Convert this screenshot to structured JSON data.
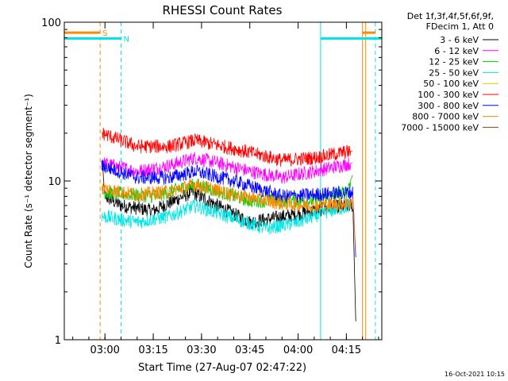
{
  "chart_data": {
    "type": "line",
    "title": "RHESSI Count Rates",
    "xlabel": "Start Time (27-Aug-07 02:47:22)",
    "ylabel": "Count Rate (s⁻¹ detector segment⁻¹)",
    "yscale": "log",
    "ylim": [
      1,
      100
    ],
    "xlim": [
      "02:47:22",
      "04:26"
    ],
    "x_ticks": [
      "03:00",
      "03:15",
      "03:30",
      "03:45",
      "04:00",
      "04:15"
    ],
    "y_ticks": [
      "1",
      "10",
      "100"
    ],
    "grid": false,
    "legend": {
      "placement": "top-right",
      "header": [
        "Det 1f,3f,4f,5f,6f,9f,",
        "FDecim 1, Att 0"
      ],
      "entries": [
        {
          "label": "3 - 6 keV",
          "color": "#000000"
        },
        {
          "label": "6 - 12 keV",
          "color": "#ff00ff"
        },
        {
          "label": "12 - 25 keV",
          "color": "#00cc00"
        },
        {
          "label": "25 - 50 keV",
          "color": "#00e5e5"
        },
        {
          "label": "50 - 100 keV",
          "color": "#e6c800"
        },
        {
          "label": "100 - 300 keV",
          "color": "#ff0000"
        },
        {
          "label": "300 - 800 keV",
          "color": "#0000ff"
        },
        {
          "label": "800 - 7000 keV",
          "color": "#ff8800"
        },
        {
          "label": "7000 - 15000 keV",
          "color": "#8b4513"
        }
      ]
    },
    "series": [
      {
        "name": "3 - 6 keV",
        "color": "#000000",
        "points": [
          [
            "02:59",
            13
          ],
          [
            "03:00",
            8
          ],
          [
            "03:05",
            7
          ],
          [
            "03:15",
            6.5
          ],
          [
            "03:27",
            8.5
          ],
          [
            "03:35",
            7
          ],
          [
            "03:45",
            5.5
          ],
          [
            "04:00",
            6.2
          ],
          [
            "04:10",
            6.8
          ],
          [
            "04:17",
            7
          ],
          [
            "04:18",
            1.1
          ]
        ]
      },
      {
        "name": "6 - 12 keV",
        "color": "#ff00ff",
        "points": [
          [
            "02:59",
            13
          ],
          [
            "03:10",
            11.5
          ],
          [
            "03:20",
            12.5
          ],
          [
            "03:28",
            14
          ],
          [
            "03:35",
            13
          ],
          [
            "03:45",
            11.5
          ],
          [
            "03:55",
            10.5
          ],
          [
            "04:05",
            11.5
          ],
          [
            "04:17",
            13
          ]
        ]
      },
      {
        "name": "12 - 25 keV",
        "color": "#00cc00",
        "points": [
          [
            "02:59",
            8.5
          ],
          [
            "03:15",
            8
          ],
          [
            "03:28",
            9.5
          ],
          [
            "03:45",
            7.5
          ],
          [
            "04:05",
            7.5
          ],
          [
            "04:15",
            8.5
          ],
          [
            "04:17",
            11
          ]
        ]
      },
      {
        "name": "25 - 50 keV",
        "color": "#00e5e5",
        "points": [
          [
            "02:59",
            6
          ],
          [
            "03:10",
            5.5
          ],
          [
            "03:20",
            6
          ],
          [
            "03:28",
            7
          ],
          [
            "03:38",
            6
          ],
          [
            "03:50",
            5
          ],
          [
            "04:00",
            5.5
          ],
          [
            "04:10",
            6.5
          ],
          [
            "04:17",
            7
          ]
        ]
      },
      {
        "name": "100 - 300 keV",
        "color": "#ff0000",
        "points": [
          [
            "02:59",
            20
          ],
          [
            "03:10",
            16.5
          ],
          [
            "03:20",
            16.5
          ],
          [
            "03:28",
            18
          ],
          [
            "03:40",
            16
          ],
          [
            "03:55",
            13.5
          ],
          [
            "04:05",
            14
          ],
          [
            "04:17",
            15.5
          ]
        ]
      },
      {
        "name": "300 - 800 keV",
        "color": "#0000ff",
        "points": [
          [
            "02:59",
            12.5
          ],
          [
            "03:10",
            10.5
          ],
          [
            "03:20",
            10.5
          ],
          [
            "03:28",
            11.5
          ],
          [
            "03:40",
            10
          ],
          [
            "03:55",
            8
          ],
          [
            "04:05",
            8.2
          ],
          [
            "04:17",
            8.5
          ],
          [
            "04:18",
            3
          ]
        ]
      },
      {
        "name": "800 - 7000 keV",
        "color": "#ff8800",
        "points": [
          [
            "02:59",
            9
          ],
          [
            "03:10",
            8.2
          ],
          [
            "03:20",
            8.6
          ],
          [
            "03:28",
            9.5
          ],
          [
            "03:40",
            8.2
          ],
          [
            "03:55",
            7.2
          ],
          [
            "04:05",
            7
          ],
          [
            "04:17",
            7.3
          ],
          [
            "04:18",
            3.5
          ]
        ]
      }
    ],
    "attenuator_bars": [
      {
        "label": "S",
        "color": "#ff8800",
        "from": "02:47:22",
        "to": "02:58:30",
        "value": 86
      },
      {
        "label": "N",
        "color": "#00e5e5",
        "from": "02:47:22",
        "to": "03:05",
        "value": 79
      },
      {
        "label": "",
        "color": "#00e5e5",
        "from": "04:07",
        "to": "04:26",
        "value": 79
      },
      {
        "label": "",
        "color": "#ff8800",
        "from": "04:20",
        "to": "04:24",
        "value": 86
      }
    ],
    "vertical_markers": [
      {
        "time": "02:58:30",
        "color": "#ff8800",
        "style": "dashed"
      },
      {
        "time": "03:05",
        "color": "#00e5e5",
        "style": "dashed"
      },
      {
        "time": "04:07",
        "color": "#00e5e5",
        "style": "solid"
      },
      {
        "time": "04:20",
        "color": "#ff8800",
        "style": "solid"
      },
      {
        "time": "04:21",
        "color": "#ff8800",
        "style": "solid"
      },
      {
        "time": "04:24",
        "color": "#00e5e5",
        "style": "dashed"
      }
    ],
    "footer_timestamp": "16-Oct-2021 10:15"
  }
}
